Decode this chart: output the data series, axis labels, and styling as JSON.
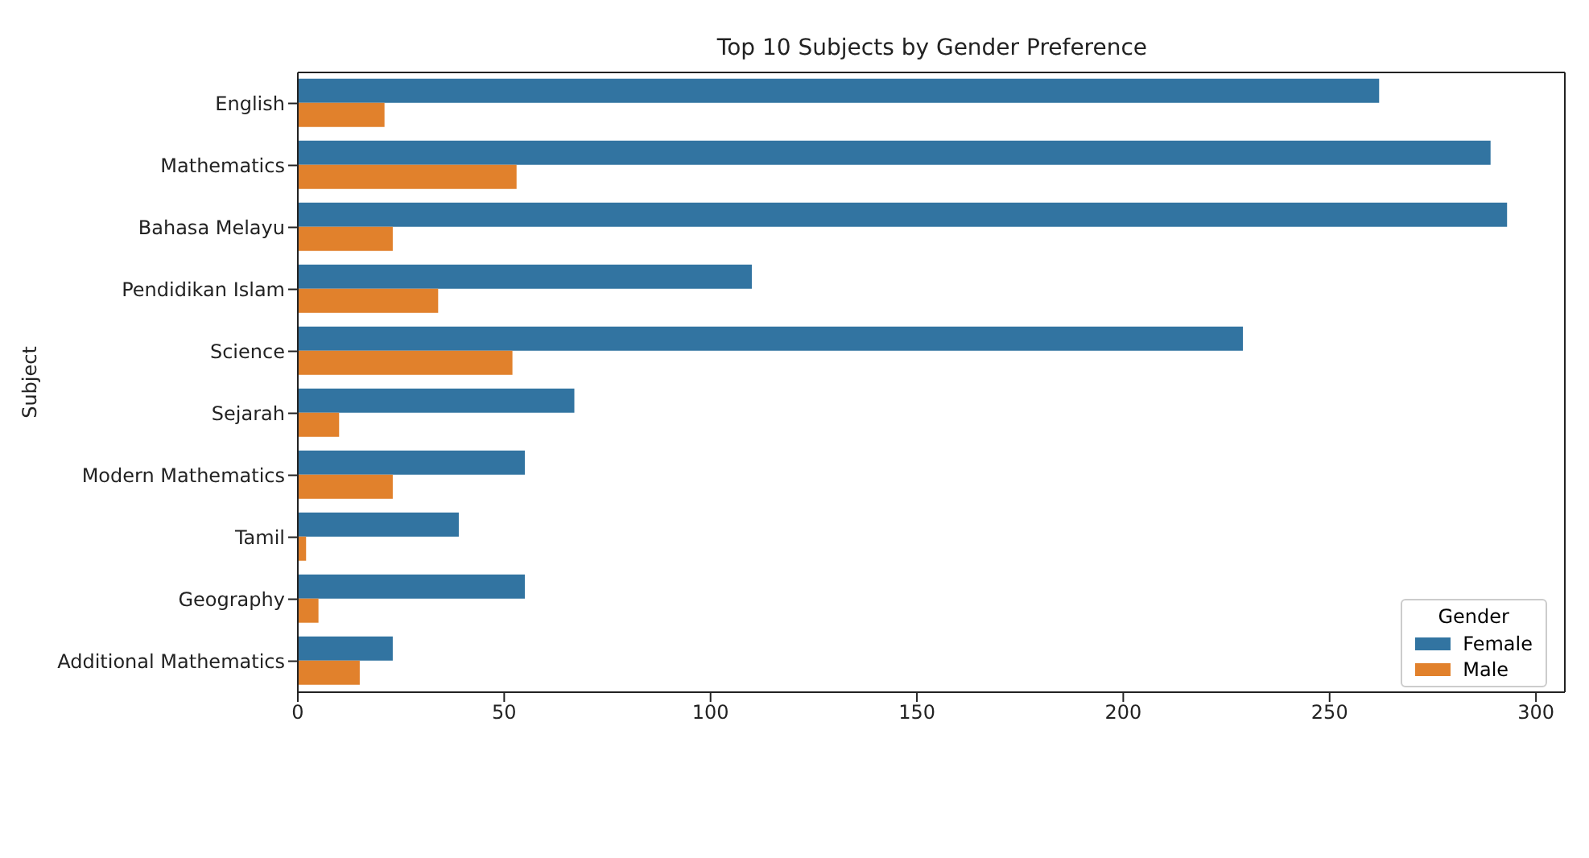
{
  "chart_data": {
    "type": "bar",
    "orientation": "horizontal",
    "title": "Top 10 Subjects by Gender Preference",
    "ylabel": "Subject",
    "legend_title": "Gender",
    "categories": [
      "English",
      "Mathematics",
      "Bahasa Melayu",
      "Pendidikan Islam",
      "Science",
      "Sejarah",
      "Modern Mathematics",
      "Tamil",
      "Geography",
      "Additional Mathematics"
    ],
    "series": [
      {
        "name": "Female",
        "color": "#3274a1",
        "values": [
          262,
          289,
          293,
          110,
          229,
          67,
          55,
          39,
          55,
          23
        ]
      },
      {
        "name": "Male",
        "color": "#e1812c",
        "values": [
          21,
          53,
          23,
          34,
          52,
          10,
          23,
          2,
          5,
          15
        ]
      }
    ],
    "xlim": [
      0,
      307
    ],
    "xticks": [
      0,
      50,
      100,
      150,
      200,
      250,
      300
    ],
    "legend": "bottom right"
  }
}
